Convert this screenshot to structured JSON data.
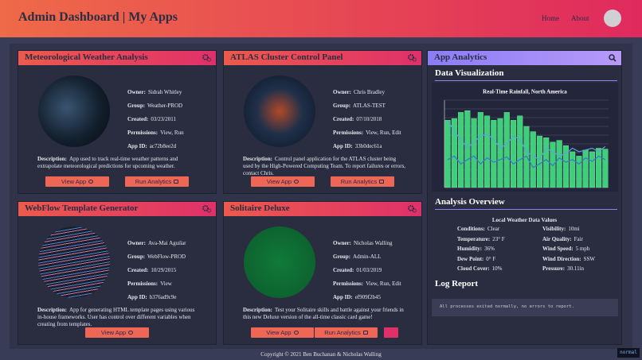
{
  "header": {
    "title": "Admin Dashboard | My Apps",
    "nav": [
      "Home",
      "About"
    ]
  },
  "apps": [
    {
      "title": "Meteorological Weather Analysis",
      "fields": [
        {
          "label": "Owner:",
          "value": "Sidrah Whitley"
        },
        {
          "label": "Group:",
          "value": "Weather-PROD"
        },
        {
          "label": "Created:",
          "value": "03/23/2011"
        },
        {
          "label": "Permissions:",
          "value": "View, Run"
        },
        {
          "label": "App ID:",
          "value": "ac72b8ee2d"
        }
      ],
      "description": {
        "label": "Description:",
        "text": "App used to track real-time weather patterns and extrapolate meteorological predictions for upcoming weather."
      },
      "buttons": [
        "View App",
        "Run Analytics"
      ]
    },
    {
      "title": "ATLAS Cluster Control Panel",
      "fields": [
        {
          "label": "Owner:",
          "value": "Chris Bradley"
        },
        {
          "label": "Group:",
          "value": "ATLAS-TEST"
        },
        {
          "label": "Created:",
          "value": "07/10/2018"
        },
        {
          "label": "Permissions:",
          "value": "View, Run, Edit"
        },
        {
          "label": "App ID:",
          "value": "33b0dec61a"
        }
      ],
      "description": {
        "label": "Description:",
        "text": "Control panel application for the ATLAS cluster being used by the High-Powered Computing Team. To report failures or errors, contact Chris."
      },
      "buttons": [
        "View App",
        "Run Analytics"
      ]
    },
    {
      "title": "WebFlow Template Generator",
      "fields": [
        {
          "label": "Owner:",
          "value": "Ava-Mai Aguilar"
        },
        {
          "label": "Group:",
          "value": "WebFlow-PROD"
        },
        {
          "label": "Created:",
          "value": "10/29/2015"
        },
        {
          "label": "Permissions:",
          "value": "View"
        },
        {
          "label": "App ID:",
          "value": "b376ad9c9e"
        }
      ],
      "description": {
        "label": "Description:",
        "text": "App for generating HTML template pages using various in-house frameworks. User has control over different variables when creating from templates."
      },
      "buttons": [
        "View App"
      ]
    },
    {
      "title": "Solitaire Deluxe",
      "fields": [
        {
          "label": "Owner:",
          "value": "Nicholas Walling"
        },
        {
          "label": "Group:",
          "value": "Admin-ALL"
        },
        {
          "label": "Created:",
          "value": "01/03/2019"
        },
        {
          "label": "Permissions:",
          "value": "View, Run, Edit"
        },
        {
          "label": "App ID:",
          "value": "ef909f2b45"
        }
      ],
      "description": {
        "label": "Description:",
        "text": "Test your Solitaire skills and battle against your friends in this new Deluxe version of the all-time classic card game!"
      },
      "buttons": [
        "View App",
        "Run Analytics"
      ]
    }
  ],
  "analytics": {
    "title": "App Analytics",
    "visualization": "Data Visualization",
    "overview": "Analysis Overview",
    "weather": {
      "title": "Local Weather Data Values",
      "rows": [
        [
          {
            "label": "Conditions:",
            "value": "Clear"
          },
          {
            "label": "Visibility:",
            "value": "10mi"
          }
        ],
        [
          {
            "label": "Temperature:",
            "value": "23° F"
          },
          {
            "label": "Air Quality:",
            "value": "Fair"
          }
        ],
        [
          {
            "label": "Humidity:",
            "value": "36%"
          },
          {
            "label": "Wind Speed:",
            "value": "5 mph"
          }
        ],
        [
          {
            "label": "Dew Point:",
            "value": "0° F"
          },
          {
            "label": "Wind Direction:",
            "value": "SSW"
          }
        ],
        [
          {
            "label": "Cloud Cover:",
            "value": "10%"
          },
          {
            "label": "Pressure:",
            "value": "30.11in"
          }
        ]
      ]
    },
    "log_title": "Log Report",
    "log": "All processes exited normally, no errors to report."
  },
  "chart_data": {
    "type": "bar",
    "title": "Real-Time Rainfall, North America",
    "categories": [
      null,
      null,
      null,
      null,
      null,
      null,
      null,
      null,
      null,
      null,
      null,
      null,
      null,
      null,
      null,
      null,
      null,
      null,
      null,
      null,
      null,
      null,
      null,
      null,
      null
    ],
    "ylim": [
      0,
      100
    ],
    "series": [
      {
        "type": "bar",
        "color": "#3ecf7a",
        "values": [
          77,
          79,
          86,
          88,
          79,
          86,
          82,
          77,
          79,
          86,
          77,
          82,
          70,
          64,
          59,
          57,
          52,
          54,
          48,
          41,
          36,
          43,
          41,
          45,
          44
        ]
      },
      {
        "type": "line",
        "color": "#5aa5e0",
        "values": [
          77,
          64,
          55,
          45,
          52,
          59,
          61,
          55,
          45,
          50,
          59,
          55,
          41,
          36,
          32,
          45,
          41,
          36,
          39,
          45,
          41,
          43,
          45,
          41,
          47
        ]
      },
      {
        "type": "line",
        "color": "#3a78c8",
        "values": [
          32,
          36,
          27,
          32,
          36,
          27,
          34,
          29,
          32,
          35,
          27,
          32,
          36,
          23,
          27,
          32,
          25,
          34,
          29,
          32,
          27,
          34,
          30,
          36,
          32
        ]
      }
    ]
  },
  "footer": "Copyright © 2021 Ben Buchanan & Nicholas Walling",
  "mode": "normal"
}
